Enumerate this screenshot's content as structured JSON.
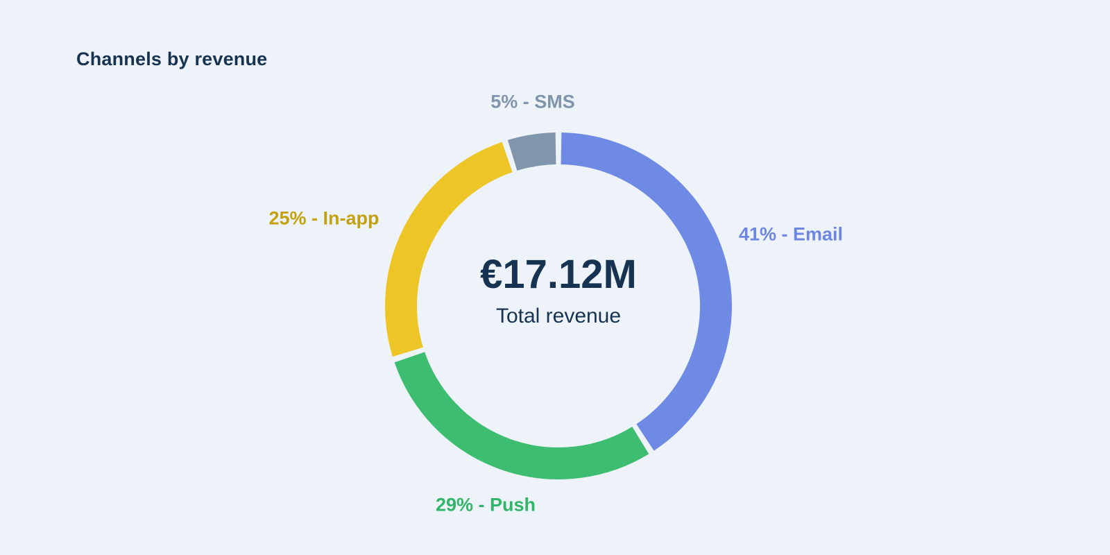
{
  "background": "#edf3f8",
  "title": {
    "text": "Channels by revenue",
    "color": "#173352"
  },
  "center": {
    "value": "€17.12M",
    "caption": "Total revenue",
    "color": "#173352"
  },
  "chart_data": {
    "type": "pie",
    "subtype": "donut",
    "title": "Channels by revenue",
    "center_value": "€17.12M",
    "center_caption": "Total revenue",
    "start_angle_deg": 0,
    "direction": "clockwise",
    "pad_angle_deg": 2,
    "legend_position": "around-slices",
    "slices": [
      {
        "label": "Email",
        "percent": 41,
        "display": "41% - Email",
        "color": "#6f8ae4",
        "label_color": "#6d86e2"
      },
      {
        "label": "Push",
        "percent": 29,
        "display": "29% - Push",
        "color": "#3dbd6f",
        "label_color": "#31b668"
      },
      {
        "label": "In-app",
        "percent": 25,
        "display": "25% - In-app",
        "color": "#eec527",
        "label_color": "#c4a20d"
      },
      {
        "label": "SMS",
        "percent": 5,
        "display": "5% - SMS",
        "color": "#8096ad",
        "label_color": "#8095ac"
      }
    ]
  }
}
